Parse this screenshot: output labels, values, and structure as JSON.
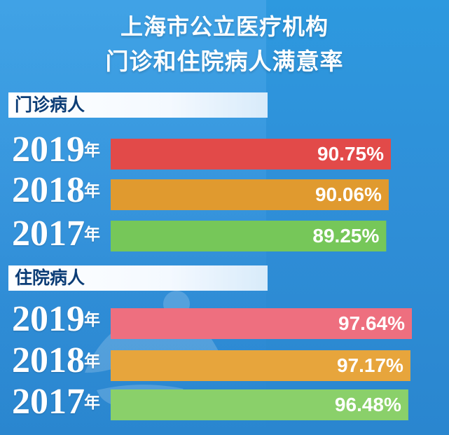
{
  "title_line1": "上海市公立医疗机构",
  "title_line2": "门诊和住院病人满意率",
  "year_unit": "年",
  "sections": [
    {
      "label": "门诊病人"
    },
    {
      "label": "住院病人"
    }
  ],
  "colors": {
    "background": "#2d99df",
    "section_label_text": "#0c3d76",
    "outpatient_2019": "#e24a49",
    "outpatient_2018": "#e09a2f",
    "outpatient_2017": "#76c759",
    "inpatient_2019": "#ee6f7f",
    "inpatient_2018": "#e7a53c",
    "inpatient_2017": "#8ad06a"
  },
  "chart_data": [
    {
      "type": "bar",
      "title": "门诊病人",
      "categories": [
        "2019",
        "2018",
        "2017"
      ],
      "values": [
        90.75,
        90.06,
        89.25
      ],
      "value_labels": [
        "90.75%",
        "90.06%",
        "89.25%"
      ],
      "bar_colors": [
        "#e24a49",
        "#e09a2f",
        "#76c759"
      ]
    },
    {
      "type": "bar",
      "title": "住院病人",
      "categories": [
        "2019",
        "2018",
        "2017"
      ],
      "values": [
        97.64,
        97.17,
        96.48
      ],
      "value_labels": [
        "97.64%",
        "97.17%",
        "96.48%"
      ],
      "bar_colors": [
        "#ee6f7f",
        "#e7a53c",
        "#8ad06a"
      ]
    }
  ]
}
